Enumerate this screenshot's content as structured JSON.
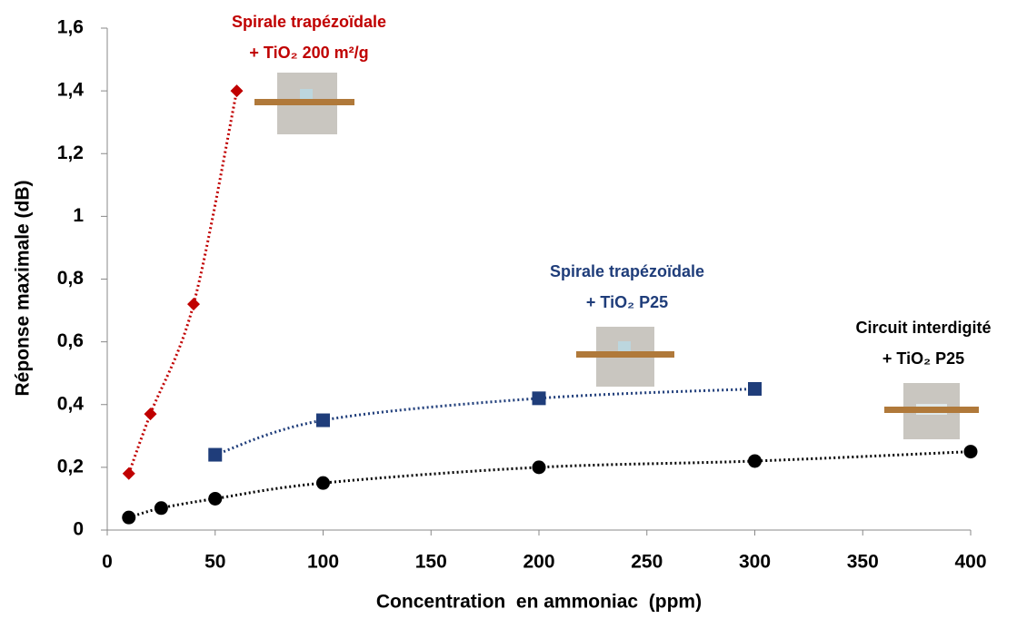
{
  "chart_data": {
    "type": "scatter",
    "x_label": "Concentration  en ammoniac  (ppm)",
    "y_label": "Réponse maximale (dB)",
    "xlim": [
      0,
      400
    ],
    "xticks": [
      0,
      50,
      100,
      150,
      200,
      250,
      300,
      350,
      400
    ],
    "ylim": [
      0,
      1.6
    ],
    "yticks": [
      0,
      {
        "value": 0.2,
        "label": "0,2"
      },
      {
        "value": 0.4,
        "label": "0,4"
      },
      {
        "value": 0.6,
        "label": "0,6"
      },
      {
        "value": 0.8,
        "label": "0,8"
      },
      1,
      {
        "value": 1.2,
        "label": "1,2"
      },
      {
        "value": 1.4,
        "label": "1,4"
      },
      {
        "value": 1.6,
        "label": "1,6"
      }
    ],
    "line_style": "dotted",
    "series": [
      {
        "name_lines": [
          "Spirale trapézoïdale",
          "+ TiO₂ 200 m²/g"
        ],
        "color": "#c00000",
        "marker": "diamond",
        "x": [
          10,
          20,
          40,
          60
        ],
        "values": [
          0.18,
          0.37,
          0.72,
          1.4
        ]
      },
      {
        "name_lines": [
          "Spirale trapézoïdale",
          "+ TiO₂ P25"
        ],
        "color": "#1f3d7a",
        "marker": "square",
        "x": [
          50,
          100,
          200,
          300
        ],
        "values": [
          0.24,
          0.35,
          0.42,
          0.45
        ]
      },
      {
        "name_lines": [
          "Circuit interdigité",
          "+ TiO₂ P25"
        ],
        "color": "#000000",
        "marker": "circle",
        "x": [
          10,
          25,
          50,
          100,
          200,
          300,
          400
        ],
        "values": [
          0.04,
          0.07,
          0.1,
          0.15,
          0.2,
          0.22,
          0.25
        ]
      }
    ]
  }
}
